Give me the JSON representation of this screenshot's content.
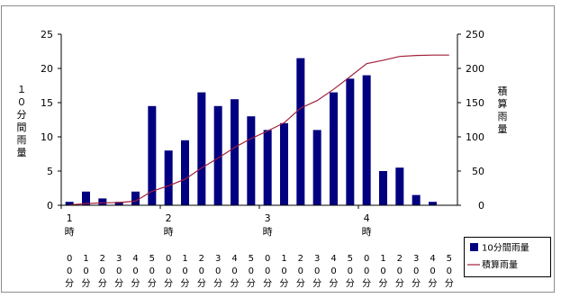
{
  "chart_data": {
    "type": "bar",
    "y_left_label": "１０分間雨量",
    "y_right_label": "積算雨量",
    "y_left_range": [
      0,
      25
    ],
    "y_left_ticks": [
      "0",
      "5",
      "10",
      "15",
      "20",
      "25"
    ],
    "y_right_range": [
      0,
      250
    ],
    "y_right_ticks": [
      "0",
      "50",
      "100",
      "150",
      "200",
      "250"
    ],
    "grid": false,
    "legend_placement": "bottom-right",
    "hour_labels": [
      "1",
      "2",
      "3",
      "4"
    ],
    "hour_suffix": "時",
    "minute_labels": [
      "0",
      "1",
      "2",
      "3",
      "4",
      "5",
      "0",
      "1",
      "2",
      "3",
      "4",
      "5",
      "0",
      "1",
      "2",
      "3",
      "4",
      "5",
      "0",
      "1",
      "2",
      "3",
      "4",
      "5"
    ],
    "minute_row2": "0",
    "minute_row3": "分",
    "series": [
      {
        "name": "10分間雨量",
        "type": "bar",
        "axis": "left",
        "color": "#000080",
        "values": [
          0.5,
          2,
          1,
          0.5,
          2,
          14.5,
          8,
          9.5,
          16.5,
          14.5,
          15.5,
          13,
          11,
          12,
          21.5,
          11,
          16.5,
          18.5,
          19,
          5,
          5.5,
          1.5,
          0.5
        ]
      },
      {
        "name": "積算雨量",
        "type": "line",
        "axis": "right",
        "color": "#a0203a",
        "values": [
          0.5,
          2.5,
          3.5,
          4,
          6,
          20.5,
          28.5,
          38,
          54.5,
          69,
          84.5,
          97.5,
          108.5,
          120.5,
          142,
          153,
          169.5,
          188,
          207,
          212,
          217.5,
          219,
          219.5,
          219.5
        ]
      }
    ]
  }
}
